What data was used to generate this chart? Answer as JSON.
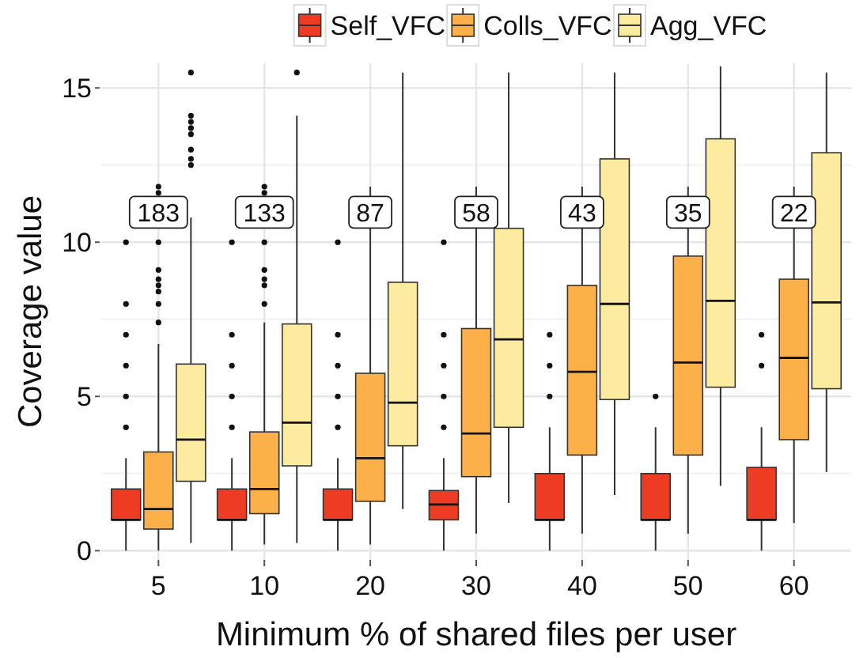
{
  "chart_data": {
    "type": "box",
    "xlabel": "Minimum % of shared files per user",
    "ylabel": "Coverage value",
    "categories": [
      "5",
      "10",
      "20",
      "30",
      "40",
      "50",
      "60"
    ],
    "ylim": [
      -0.3,
      15.8
    ],
    "yticks": [
      0,
      5,
      10,
      15
    ],
    "grid": true,
    "legend": "top",
    "series": [
      {
        "name": "Self_VFC",
        "color": "#ee3b24",
        "boxes": [
          {
            "low": 0,
            "q1": 1.0,
            "median": 1.0,
            "q3": 2.0,
            "high": 3.0,
            "outliers": [
              4,
              5,
              6,
              7,
              8,
              10
            ]
          },
          {
            "low": 0,
            "q1": 1.0,
            "median": 1.0,
            "q3": 2.0,
            "high": 3.0,
            "outliers": [
              4,
              5,
              6,
              7,
              10
            ]
          },
          {
            "low": 0,
            "q1": 1.0,
            "median": 1.0,
            "q3": 2.0,
            "high": 3.0,
            "outliers": [
              4,
              5,
              6,
              7,
              10
            ]
          },
          {
            "low": 0,
            "q1": 1.0,
            "median": 1.5,
            "q3": 1.95,
            "high": 3.0,
            "outliers": [
              4,
              5,
              6,
              7,
              10
            ]
          },
          {
            "low": 0,
            "q1": 1.0,
            "median": 1.0,
            "q3": 2.5,
            "high": 4.0,
            "outliers": [
              5,
              6,
              7
            ]
          },
          {
            "low": 0,
            "q1": 1.0,
            "median": 1.0,
            "q3": 2.5,
            "high": 4.0,
            "outliers": [
              5
            ]
          },
          {
            "low": 0,
            "q1": 1.0,
            "median": 1.0,
            "q3": 2.7,
            "high": 4.0,
            "outliers": [
              6,
              7
            ]
          }
        ]
      },
      {
        "name": "Colls_VFC",
        "color": "#fbb04a",
        "boxes": [
          {
            "low": 0,
            "q1": 0.7,
            "median": 1.35,
            "q3": 3.2,
            "high": 6.7,
            "outliers": [
              7.4,
              8,
              8.4,
              8.6,
              8.8,
              9.1,
              10,
              11.6,
              11.8
            ]
          },
          {
            "low": 0.2,
            "q1": 1.2,
            "median": 2.0,
            "q3": 3.85,
            "high": 7.4,
            "outliers": [
              8,
              8.6,
              8.8,
              9.1,
              10,
              11.6,
              11.8
            ]
          },
          {
            "low": 0.2,
            "q1": 1.6,
            "median": 3.0,
            "q3": 5.75,
            "high": 11.8
          },
          {
            "low": 0.55,
            "q1": 2.4,
            "median": 3.8,
            "q3": 7.2,
            "high": 11.8
          },
          {
            "low": 0.55,
            "q1": 3.1,
            "median": 5.8,
            "q3": 8.6,
            "high": 11.8
          },
          {
            "low": 0.55,
            "q1": 3.1,
            "median": 6.1,
            "q3": 9.55,
            "high": 11.8
          },
          {
            "low": 0.9,
            "q1": 3.6,
            "median": 6.25,
            "q3": 8.8,
            "high": 11.8
          }
        ]
      },
      {
        "name": "Agg_VFC",
        "color": "#fdeca0",
        "boxes": [
          {
            "low": 0.25,
            "q1": 2.25,
            "median": 3.6,
            "q3": 6.05,
            "high": 10.8,
            "outliers": [
              12.5,
              12.7,
              13.0,
              13.5,
              13.7,
              13.9,
              14.1,
              15.5
            ]
          },
          {
            "low": 0.25,
            "q1": 2.75,
            "median": 4.15,
            "q3": 7.35,
            "high": 14.1,
            "outliers": [
              15.5
            ]
          },
          {
            "low": 1.35,
            "q1": 3.4,
            "median": 4.8,
            "q3": 8.7,
            "high": 15.5
          },
          {
            "low": 1.55,
            "q1": 4.0,
            "median": 6.85,
            "q3": 10.45,
            "high": 15.5
          },
          {
            "low": 1.8,
            "q1": 4.9,
            "median": 8.0,
            "q3": 12.7,
            "high": 15.5
          },
          {
            "low": 2.1,
            "q1": 5.3,
            "median": 8.1,
            "q3": 13.35,
            "high": 15.7
          },
          {
            "low": 2.55,
            "q1": 5.25,
            "median": 8.05,
            "q3": 12.9,
            "high": 15.5
          }
        ]
      }
    ],
    "annotations": [
      "183",
      "133",
      "87",
      "58",
      "43",
      "35",
      "22"
    ]
  }
}
